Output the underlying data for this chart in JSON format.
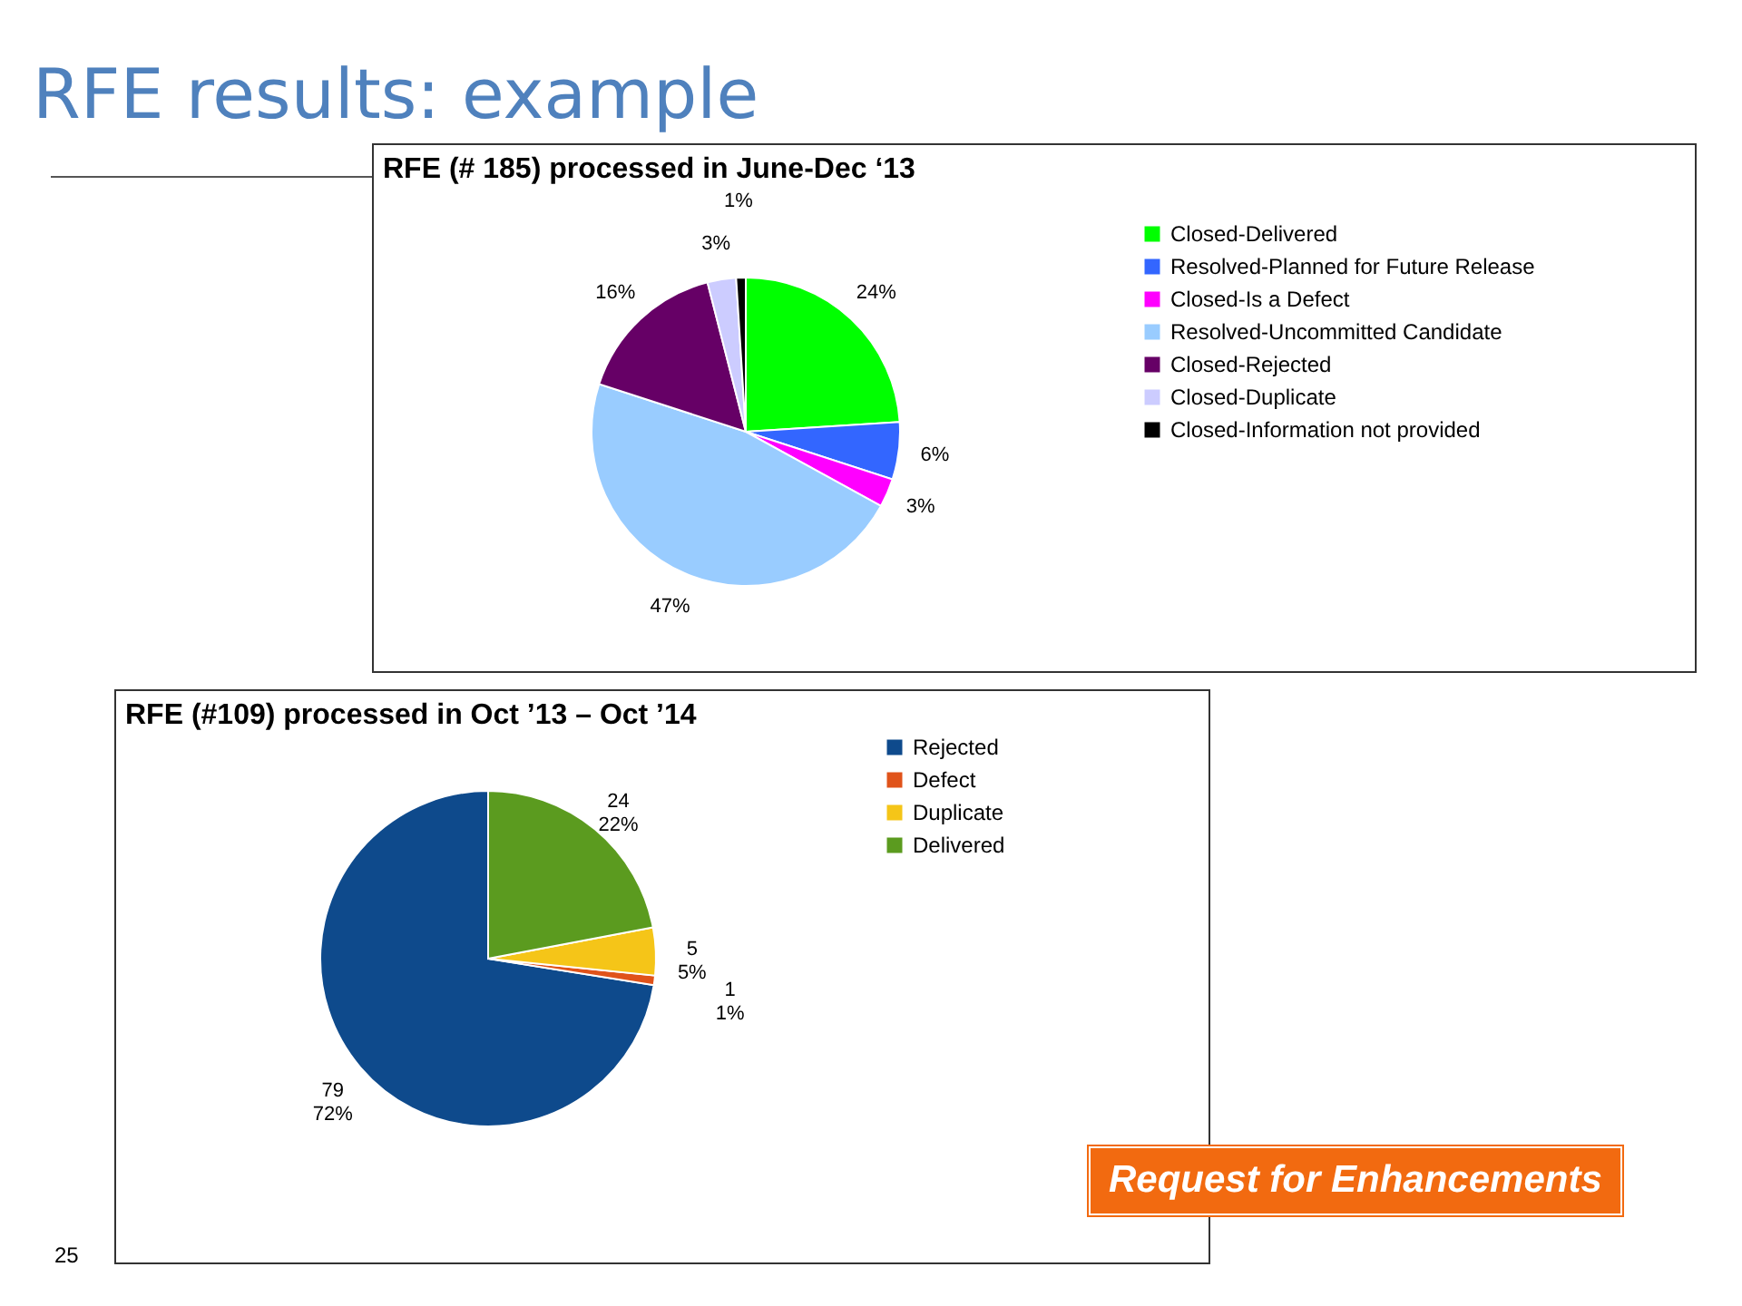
{
  "chart_data": [
    {
      "type": "other",
      "title": "RFE results: example",
      "annotations": [
        "Request for Enhancements",
        "25"
      ]
    },
    {
      "type": "pie",
      "title": "RFE (# 185) processed in June-Dec ‘13",
      "categories": [
        "Closed-Delivered",
        "Resolved-Planned for Future Release",
        "Closed-Is a Defect",
        "Resolved-Uncommitted Candidate",
        "Closed-Rejected",
        "Closed-Duplicate",
        "Closed-Information not provided"
      ],
      "values": [
        24,
        6,
        3,
        47,
        16,
        3,
        1
      ],
      "colors": [
        "#00ff00",
        "#3366ff",
        "#ff00ff",
        "#99ccff",
        "#660066",
        "#ccccff",
        "#000000"
      ],
      "value_labels": [
        "24%",
        "6%",
        "3%",
        "47%",
        "16%",
        "3%",
        "1%"
      ],
      "legend": "right"
    },
    {
      "type": "pie",
      "title": "RFE (#109) processed in Oct ’13 – Oct ’14",
      "categories": [
        "Rejected",
        "Defect",
        "Duplicate",
        "Delivered"
      ],
      "values": [
        79,
        1,
        5,
        24
      ],
      "colors": [
        "#0e4a8c",
        "#e0531a",
        "#f5c518",
        "#5b9b1f"
      ],
      "value_labels": [
        "79\n72%",
        "1\n1%",
        "5\n5%",
        "24\n22%"
      ],
      "legend": "right"
    }
  ]
}
